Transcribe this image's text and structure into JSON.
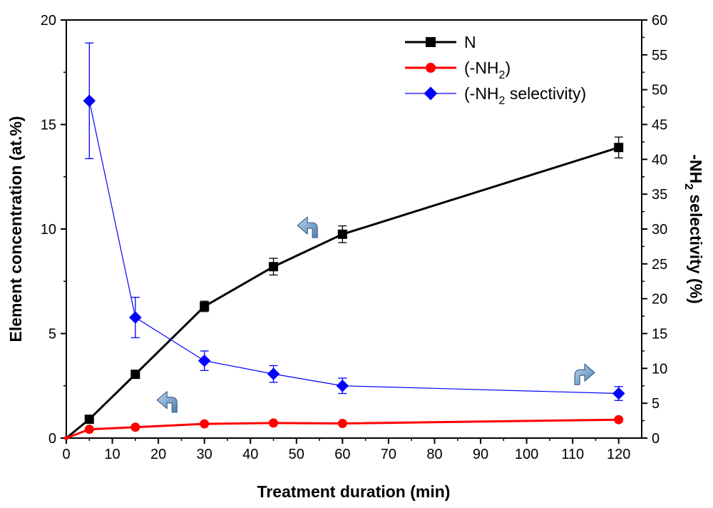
{
  "chart_data": {
    "type": "line",
    "title": "",
    "xlabel": "Treatment duration (min)",
    "ylabel": "Element concentration (at.%)",
    "y2label": {
      "text": "-NH",
      "sub": "2",
      "rest": " selectivity (%)"
    },
    "xlim": [
      0,
      125
    ],
    "ylim": [
      0,
      20
    ],
    "y2lim": [
      0,
      60
    ],
    "xticks": [
      0,
      10,
      20,
      30,
      40,
      50,
      60,
      70,
      80,
      90,
      100,
      110,
      120
    ],
    "yticks": [
      0,
      5,
      10,
      15,
      20
    ],
    "y2ticks": [
      0,
      5,
      10,
      15,
      20,
      25,
      30,
      35,
      40,
      45,
      50,
      55,
      60
    ],
    "legend_position": "top-right",
    "series": [
      {
        "name": "N",
        "legend": {
          "text": "N",
          "sub": "",
          "rest": ""
        },
        "axis": "left",
        "color": "#000000",
        "marker": "square",
        "x": [
          0,
          5,
          15,
          30,
          45,
          60,
          120
        ],
        "values": [
          0,
          0.9,
          3.05,
          6.3,
          8.2,
          9.75,
          13.9
        ],
        "errors": [
          0,
          0,
          0,
          0.25,
          0.4,
          0.4,
          0.5
        ]
      },
      {
        "name": "(-NH2)",
        "legend": {
          "text": "(-NH",
          "sub": "2",
          "rest": ")"
        },
        "axis": "left",
        "color": "#ff0000",
        "marker": "circle",
        "x": [
          0,
          5,
          15,
          30,
          45,
          60,
          120
        ],
        "values": [
          0,
          0.42,
          0.52,
          0.68,
          0.72,
          0.7,
          0.88
        ],
        "errors": [
          0,
          0,
          0,
          0,
          0,
          0,
          0
        ]
      },
      {
        "name": "(-NH2 selectivity)",
        "legend": {
          "text": "(-NH",
          "sub": "2",
          "rest": " selectivity)"
        },
        "axis": "right",
        "color": "#0000ff",
        "marker": "diamond",
        "x": [
          5,
          15,
          30,
          45,
          60,
          120
        ],
        "values": [
          48.4,
          17.3,
          11.1,
          9.2,
          7.5,
          6.4
        ],
        "errors": [
          8.3,
          2.9,
          1.4,
          1.2,
          1.1,
          1.0
        ]
      }
    ],
    "annotations": [
      {
        "type": "curved-arrow",
        "points_to": "left-axis",
        "near_series": "N",
        "x": 53,
        "y": 10.1
      },
      {
        "type": "curved-arrow",
        "points_to": "left-axis",
        "near_series": "(-NH2)",
        "x": 22.5,
        "y": 1.75
      },
      {
        "type": "curved-arrow",
        "points_to": "right-axis",
        "near_series": "(-NH2 selectivity)",
        "x": 112,
        "y2": 9.2
      }
    ]
  }
}
